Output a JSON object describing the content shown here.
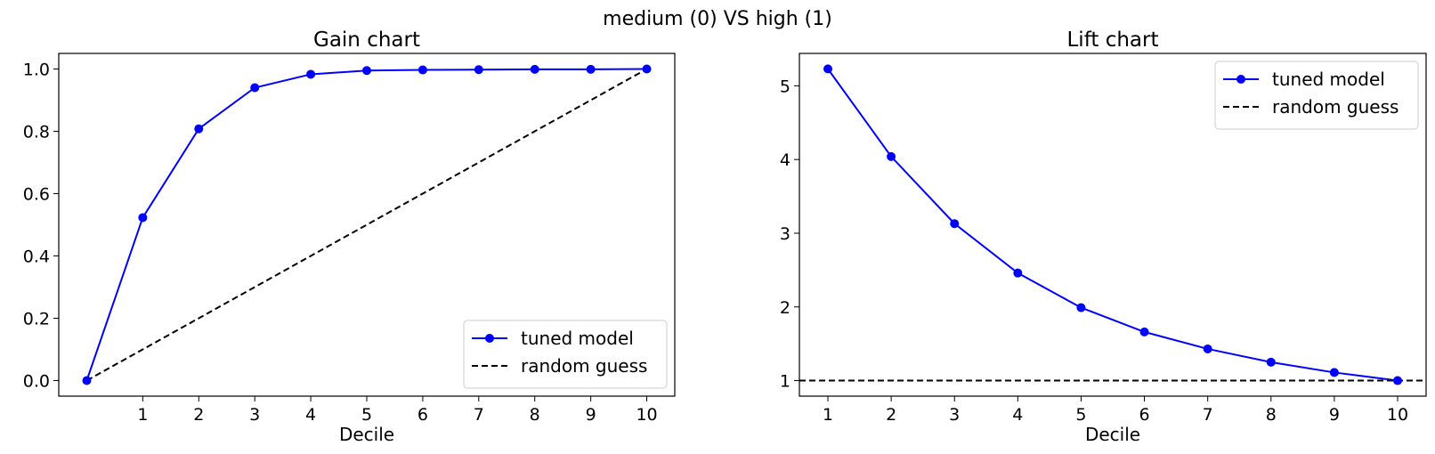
{
  "suptitle": "medium (0) VS high (1)",
  "chart_data": [
    {
      "type": "line",
      "title": "Gain chart",
      "xlabel": "Decile",
      "ylabel": "",
      "xlim": [
        -0.5,
        10.5
      ],
      "ylim": [
        -0.05,
        1.05
      ],
      "xticks": [
        1,
        2,
        3,
        4,
        5,
        6,
        7,
        8,
        9,
        10
      ],
      "yticks": [
        0.0,
        0.2,
        0.4,
        0.6,
        0.8,
        1.0
      ],
      "ytick_labels": [
        "0.0",
        "0.2",
        "0.4",
        "0.6",
        "0.8",
        "1.0"
      ],
      "legend_position": "lower-right",
      "grid": false,
      "series": [
        {
          "name": "tuned model",
          "color": "#0000ff",
          "style": "solid",
          "marker": "circle",
          "x": [
            0,
            1,
            2,
            3,
            4,
            5,
            6,
            7,
            8,
            9,
            10
          ],
          "y": [
            0.0,
            0.523,
            0.808,
            0.94,
            0.983,
            0.995,
            0.997,
            0.998,
            0.999,
            0.999,
            1.0
          ]
        },
        {
          "name": "random guess",
          "color": "#000000",
          "style": "dashed",
          "marker": "none",
          "x": [
            0,
            10
          ],
          "y": [
            0.0,
            1.0
          ]
        }
      ]
    },
    {
      "type": "line",
      "title": "Lift chart",
      "xlabel": "Decile",
      "ylabel": "",
      "xlim": [
        0.55,
        10.45
      ],
      "ylim": [
        0.789,
        5.44
      ],
      "xticks": [
        1,
        2,
        3,
        4,
        5,
        6,
        7,
        8,
        9,
        10
      ],
      "yticks": [
        1,
        2,
        3,
        4,
        5
      ],
      "ytick_labels": [
        "1",
        "2",
        "3",
        "4",
        "5"
      ],
      "legend_position": "top-right",
      "grid": false,
      "series": [
        {
          "name": "tuned model",
          "color": "#0000ff",
          "style": "solid",
          "marker": "circle",
          "x": [
            1,
            2,
            3,
            4,
            5,
            6,
            7,
            8,
            9,
            10
          ],
          "y": [
            5.23,
            4.04,
            3.13,
            2.46,
            1.99,
            1.66,
            1.43,
            1.25,
            1.11,
            1.0
          ]
        },
        {
          "name": "random guess",
          "color": "#000000",
          "style": "dashed",
          "marker": "none",
          "x": [
            0.55,
            10.45
          ],
          "y": [
            1.0,
            1.0
          ]
        }
      ]
    }
  ]
}
